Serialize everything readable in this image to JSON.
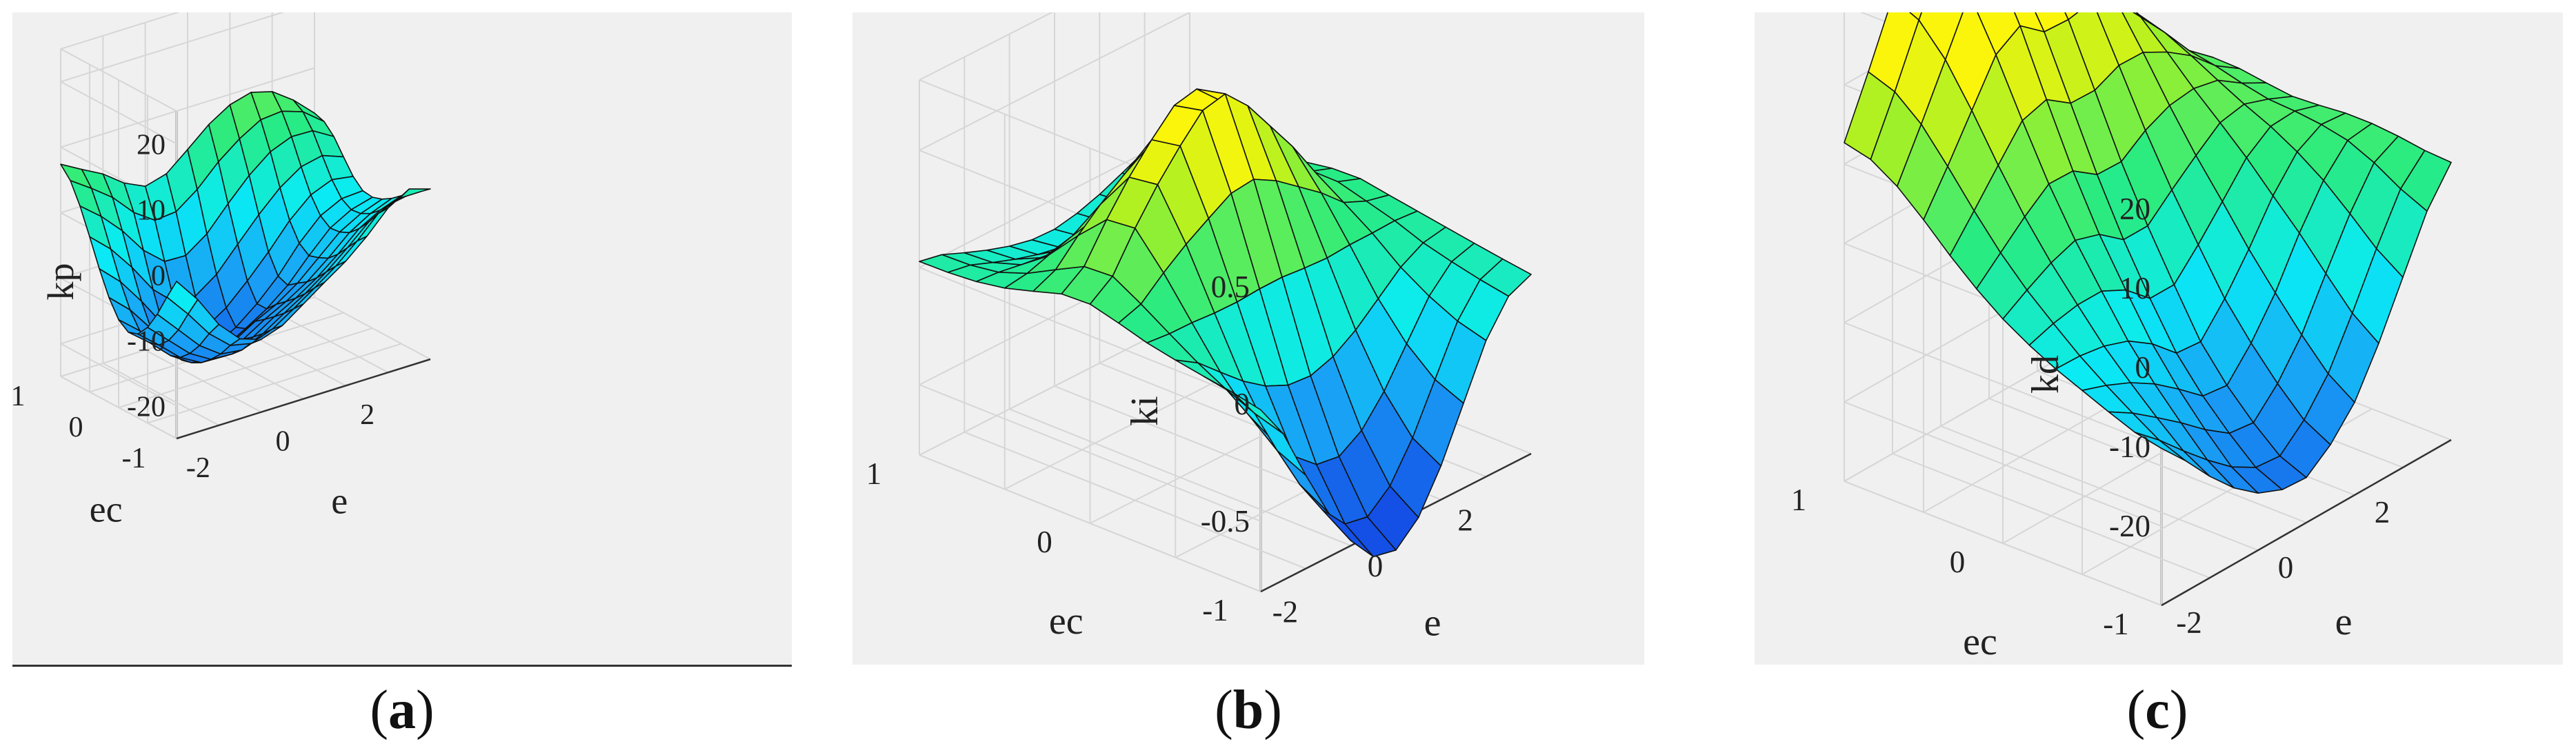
{
  "figure": {
    "captions": [
      "a",
      "b",
      "c"
    ]
  },
  "chart_data": [
    {
      "type": "surface",
      "zlabel": "kp",
      "xlabel": "e",
      "ylabel": "ec",
      "xlim": [
        -3,
        3
      ],
      "ylim": [
        -1,
        1
      ],
      "zlim": [
        -25,
        25
      ],
      "xticks": [
        "-2",
        "0",
        "2"
      ],
      "yticks": [
        "-1",
        "0",
        "1"
      ],
      "zticks": [
        "-20",
        "-10",
        "0",
        "10",
        "20"
      ],
      "x": [
        -3,
        -2.5,
        -2,
        -1.5,
        -1,
        -0.5,
        0,
        0.5,
        1,
        1.5,
        2,
        2.5,
        3
      ],
      "y": [
        -1,
        -0.8333,
        -0.6667,
        -0.5,
        -0.3333,
        -0.1667,
        0,
        0.1667,
        0.3333,
        0.5,
        0.6667,
        0.8333,
        1
      ],
      "z": [
        [
          -1.0,
          -4.8,
          -9.6,
          -12.8,
          -13.9,
          -12.8,
          -10.5,
          -8.2,
          -6.0,
          -3.2,
          0.1,
          2.0,
          1.0
        ],
        [
          -4.2,
          -7.8,
          -11.8,
          -14.6,
          -15.3,
          -14.1,
          -12.0,
          -9.8,
          -7.5,
          -4.7,
          -1.5,
          -0.2,
          -0.2
        ],
        [
          -7.6,
          -11.0,
          -14.4,
          -16.7,
          -17.1,
          -15.6,
          -13.5,
          -11.5,
          -9.2,
          -6.5,
          -3.6,
          -1.9,
          -1.3
        ],
        [
          -10.4,
          -13.4,
          -16.4,
          -18.3,
          -18.5,
          -16.9,
          -14.8,
          -13.0,
          -10.9,
          -8.3,
          -5.4,
          -3.6,
          -2.4
        ],
        [
          -12.2,
          -14.9,
          -17.8,
          -19.6,
          -19.7,
          -18.0,
          -16.0,
          -14.3,
          -12.3,
          -9.7,
          -6.8,
          -4.9,
          -3.6
        ],
        [
          -12.7,
          -15.3,
          -18.3,
          -20.4,
          -20.6,
          -19.1,
          -17.1,
          -15.5,
          -13.3,
          -10.4,
          -7.5,
          -5.7,
          -4.5
        ],
        [
          -11.6,
          -14.3,
          -17.8,
          -20.8,
          -21.8,
          -20.9,
          -19.0,
          -17.0,
          -14.4,
          -10.9,
          -7.7,
          -5.9,
          -5.0
        ],
        [
          -9.0,
          -11.9,
          -15.8,
          -19.6,
          -21.7,
          -21.4,
          -19.6,
          -17.0,
          -13.8,
          -9.8,
          -6.6,
          -5.0,
          -4.8
        ],
        [
          -5.4,
          -8.4,
          -12.4,
          -16.9,
          -19.5,
          -19.5,
          -17.4,
          -14.3,
          -10.9,
          -7.1,
          -4.2,
          -2.9,
          -3.4
        ],
        [
          -1.3,
          -4.2,
          -8.0,
          -12.4,
          -15.3,
          -15.4,
          -13.1,
          -9.5,
          -6.0,
          -2.9,
          -0.7,
          0.0,
          -1.2
        ],
        [
          2.6,
          0.0,
          -3.2,
          -7.2,
          -9.9,
          -10.0,
          -7.7,
          -4.1,
          -0.8,
          1.8,
          3.1,
          3.0,
          1.1
        ],
        [
          5.7,
          3.5,
          1.1,
          -2.2,
          -4.4,
          -4.1,
          -1.7,
          1.5,
          4.0,
          5.9,
          6.2,
          5.1,
          2.6
        ],
        [
          7.4,
          5.6,
          3.9,
          1.5,
          0.0,
          0.9,
          3.6,
          6.4,
          8.4,
          9.3,
          8.4,
          6.1,
          3.1
        ]
      ]
    },
    {
      "type": "surface",
      "zlabel": "ki",
      "xlabel": "e",
      "ylabel": "ec",
      "xlim": [
        -3,
        3
      ],
      "ylim": [
        -1,
        1
      ],
      "zlim": [
        -0.8,
        0.8
      ],
      "xticks": [
        "-2",
        "0",
        "2"
      ],
      "yticks": [
        "-1",
        "0",
        "1"
      ],
      "zticks": [
        "-0.5",
        "0",
        "0.5"
      ],
      "x": [
        -3,
        -2.5,
        -2,
        -1.5,
        -1,
        -0.5,
        0,
        0.5,
        1,
        1.5,
        2,
        2.5,
        3
      ],
      "y": [
        -1,
        -0.8333,
        -0.6667,
        -0.5,
        -0.3333,
        -0.1667,
        0,
        0.1667,
        0.3333,
        0.5,
        0.6667,
        0.8333,
        1
      ],
      "z": [
        [
          -0.025,
          -0.176,
          -0.402,
          -0.61,
          -0.779,
          -0.896,
          -0.917,
          -0.827,
          -0.656,
          -0.438,
          -0.219,
          -0.079,
          -0.035
        ],
        [
          0.002,
          -0.138,
          -0.346,
          -0.539,
          -0.696,
          -0.805,
          -0.824,
          -0.741,
          -0.585,
          -0.385,
          -0.185,
          -0.057,
          -0.018
        ],
        [
          0.021,
          -0.084,
          -0.243,
          -0.393,
          -0.516,
          -0.6,
          -0.615,
          -0.553,
          -0.435,
          -0.281,
          -0.127,
          -0.029,
          0.001
        ],
        [
          0.042,
          -0.019,
          -0.108,
          -0.195,
          -0.265,
          -0.31,
          -0.319,
          -0.286,
          -0.222,
          -0.137,
          -0.052,
          0.003,
          0.021
        ],
        [
          0.067,
          0.057,
          0.055,
          0.047,
          0.045,
          0.052,
          0.053,
          0.043,
          0.037,
          0.044,
          0.045,
          0.049,
          0.041
        ],
        [
          0.103,
          0.135,
          0.219,
          0.292,
          0.353,
          0.411,
          0.422,
          0.367,
          0.292,
          0.217,
          0.127,
          0.084,
          0.061
        ],
        [
          0.135,
          0.205,
          0.361,
          0.498,
          0.614,
          0.716,
          0.738,
          0.638,
          0.502,
          0.365,
          0.207,
          0.118,
          0.082
        ],
        [
          0.13,
          0.198,
          0.349,
          0.481,
          0.592,
          0.689,
          0.71,
          0.614,
          0.483,
          0.352,
          0.2,
          0.113,
          0.078
        ],
        [
          0.093,
          0.136,
          0.233,
          0.318,
          0.39,
          0.452,
          0.466,
          0.404,
          0.319,
          0.234,
          0.138,
          0.082,
          0.058
        ],
        [
          0.058,
          0.072,
          0.104,
          0.133,
          0.157,
          0.178,
          0.183,
          0.162,
          0.133,
          0.104,
          0.071,
          0.049,
          0.038
        ],
        [
          0.037,
          0.028,
          0.011,
          -0.007,
          -0.02,
          -0.029,
          -0.031,
          -0.022,
          -0.009,
          0.008,
          0.024,
          0.031,
          0.029
        ],
        [
          0.028,
          0.01,
          -0.028,
          -0.063,
          -0.092,
          -0.111,
          -0.115,
          -0.099,
          -0.07,
          -0.031,
          0.01,
          0.026,
          0.027
        ],
        [
          0.026,
          0.006,
          -0.035,
          -0.073,
          -0.105,
          -0.127,
          -0.131,
          -0.112,
          -0.08,
          -0.038,
          0.007,
          0.025,
          0.026
        ]
      ]
    },
    {
      "type": "surface",
      "zlabel": "kd",
      "xlabel": "e",
      "ylabel": "ec",
      "xlim": [
        -3,
        3
      ],
      "ylim": [
        -1,
        1
      ],
      "zlim": [
        -30,
        30
      ],
      "xticks": [
        "-2",
        "0",
        "2"
      ],
      "yticks": [
        "-1",
        "0",
        "1"
      ],
      "zticks": [
        "-20",
        "-10",
        "0",
        "10",
        "20"
      ],
      "x": [
        -3,
        -2.5,
        -2,
        -1.5,
        -1,
        -0.5,
        0,
        0.5,
        1,
        1.5,
        2,
        2.5,
        3
      ],
      "y": [
        -1,
        -0.8333,
        -0.6667,
        -0.5,
        -0.3333,
        -0.1667,
        0,
        0.1667,
        0.3333,
        0.5,
        0.6667,
        0.8333,
        1
      ],
      "z": [
        [
          -10.2,
          -13.5,
          -17.2,
          -20.4,
          -22.8,
          -24.1,
          -24.3,
          -21.9,
          -18.3,
          -12.6,
          -6.0,
          0.6,
          5.0
        ],
        [
          -9.5,
          -12.2,
          -15.3,
          -18.2,
          -20.8,
          -22.6,
          -22.9,
          -20.1,
          -16.0,
          -10.1,
          -3.7,
          2.1,
          5.2
        ],
        [
          -8.2,
          -10.1,
          -12.4,
          -14.8,
          -17.4,
          -19.6,
          -20.0,
          -16.8,
          -12.4,
          -6.4,
          -0.6,
          4.1,
          5.7
        ],
        [
          -6.8,
          -7.9,
          -9.3,
          -11.2,
          -13.6,
          -16.2,
          -16.6,
          -13.0,
          -8.4,
          -2.6,
          2.3,
          5.6,
          6.0
        ],
        [
          -5.4,
          -5.5,
          -6.0,
          -7.1,
          -9.2,
          -12.1,
          -12.4,
          -8.7,
          -4.2,
          0.8,
          4.6,
          6.3,
          6.0
        ],
        [
          -3.7,
          -2.7,
          -2.1,
          -2.1,
          -3.7,
          -6.5,
          -6.5,
          -3.2,
          0.5,
          4.3,
          6.5,
          6.7,
          5.7
        ],
        [
          -1.7,
          0.2,
          1.9,
          3.0,
          2.0,
          -0.4,
          -0.4,
          2.4,
          5.0,
          7.4,
          8.0,
          6.9,
          5.5
        ],
        [
          0.8,
          3.6,
          6.4,
          8.8,
          8.7,
          6.5,
          6.4,
          8.6,
          10.0,
          10.4,
          9.7,
          7.6,
          5.9
        ],
        [
          3.7,
          7.6,
          11.6,
          15.5,
          16.4,
          14.2,
          14.1,
          15.5,
          15.4,
          13.7,
          11.5,
          8.5,
          6.4
        ],
        [
          6.9,
          11.9,
          17.2,
          22.5,
          24.4,
          21.9,
          21.7,
          22.3,
          20.5,
          16.8,
          13.1,
          9.1,
          6.5
        ],
        [
          9.8,
          15.9,
          22.3,
          28.8,
          31.1,
          27.9,
          27.6,
          27.4,
          24.2,
          19.0,
          14.1,
          9.0,
          5.6
        ],
        [
          11.9,
          18.7,
          26.0,
          33.0,
          34.2,
          29.4,
          28.4,
          27.7,
          24.2,
          19.0,
          13.8,
          8.4,
          4.8
        ],
        [
          12.7,
          19.9,
          27.5,
          33.8,
          31.7,
          24.3,
          22.5,
          22.5,
          20.7,
          17.4,
          12.8,
          8.3,
          5.8
        ]
      ]
    }
  ]
}
